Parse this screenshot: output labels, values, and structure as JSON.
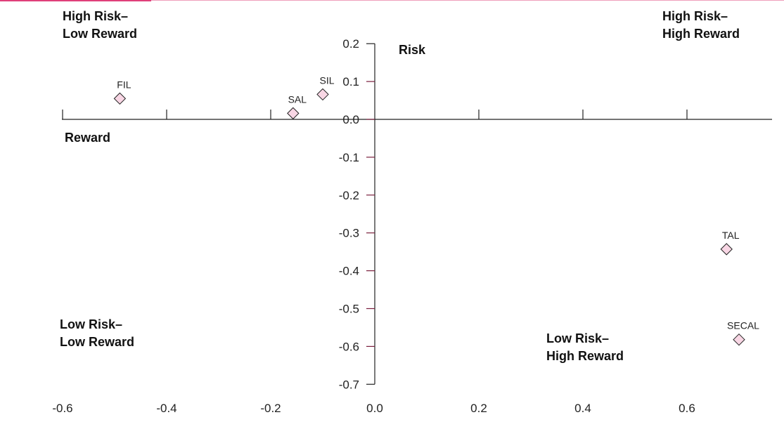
{
  "chart_data": {
    "type": "scatter",
    "xlabel": "Reward",
    "ylabel": "Risk",
    "xlim": [
      -0.6,
      0.76
    ],
    "ylim": [
      -0.7,
      0.2
    ],
    "x_ticks": [
      -0.6,
      -0.4,
      -0.2,
      0.0,
      0.2,
      0.4,
      0.6
    ],
    "y_ticks": [
      0.2,
      0.1,
      0.0,
      -0.1,
      -0.2,
      -0.3,
      -0.4,
      -0.5,
      -0.6,
      -0.7
    ],
    "x_tick_labels": [
      "-0.6",
      "-0.4",
      "-0.2",
      "0.0",
      "0.2",
      "0.4",
      "0.6"
    ],
    "y_tick_labels": [
      "0.2",
      "0.1",
      "0.0",
      "-0.1",
      "-0.2",
      "-0.3",
      "-0.4",
      "-0.5",
      "-0.6",
      "-0.7"
    ],
    "points": [
      {
        "label": "FIL",
        "x": -0.49,
        "y": 0.055
      },
      {
        "label": "SIL",
        "x": -0.1,
        "y": 0.066
      },
      {
        "label": "SAL",
        "x": -0.157,
        "y": 0.016
      },
      {
        "label": "TAL",
        "x": 0.676,
        "y": -0.343
      },
      {
        "label": "SECAL",
        "x": 0.7,
        "y": -0.582
      }
    ],
    "quadrants": [
      {
        "id": "tl",
        "lines": [
          "High Risk–",
          "Low Reward"
        ]
      },
      {
        "id": "tr",
        "lines": [
          "High Risk–",
          "High Reward"
        ]
      },
      {
        "id": "bl",
        "lines": [
          "Low Risk–",
          "Low Reward"
        ]
      },
      {
        "id": "br",
        "lines": [
          "Low Risk–",
          "High Reward"
        ]
      }
    ],
    "grid": false,
    "colors": {
      "marker_fill": "#f8d6e4",
      "marker_stroke": "#222222",
      "axis": "#222222",
      "tick_accent": "#7a1f3d",
      "top_bar": "#e0407a"
    }
  }
}
